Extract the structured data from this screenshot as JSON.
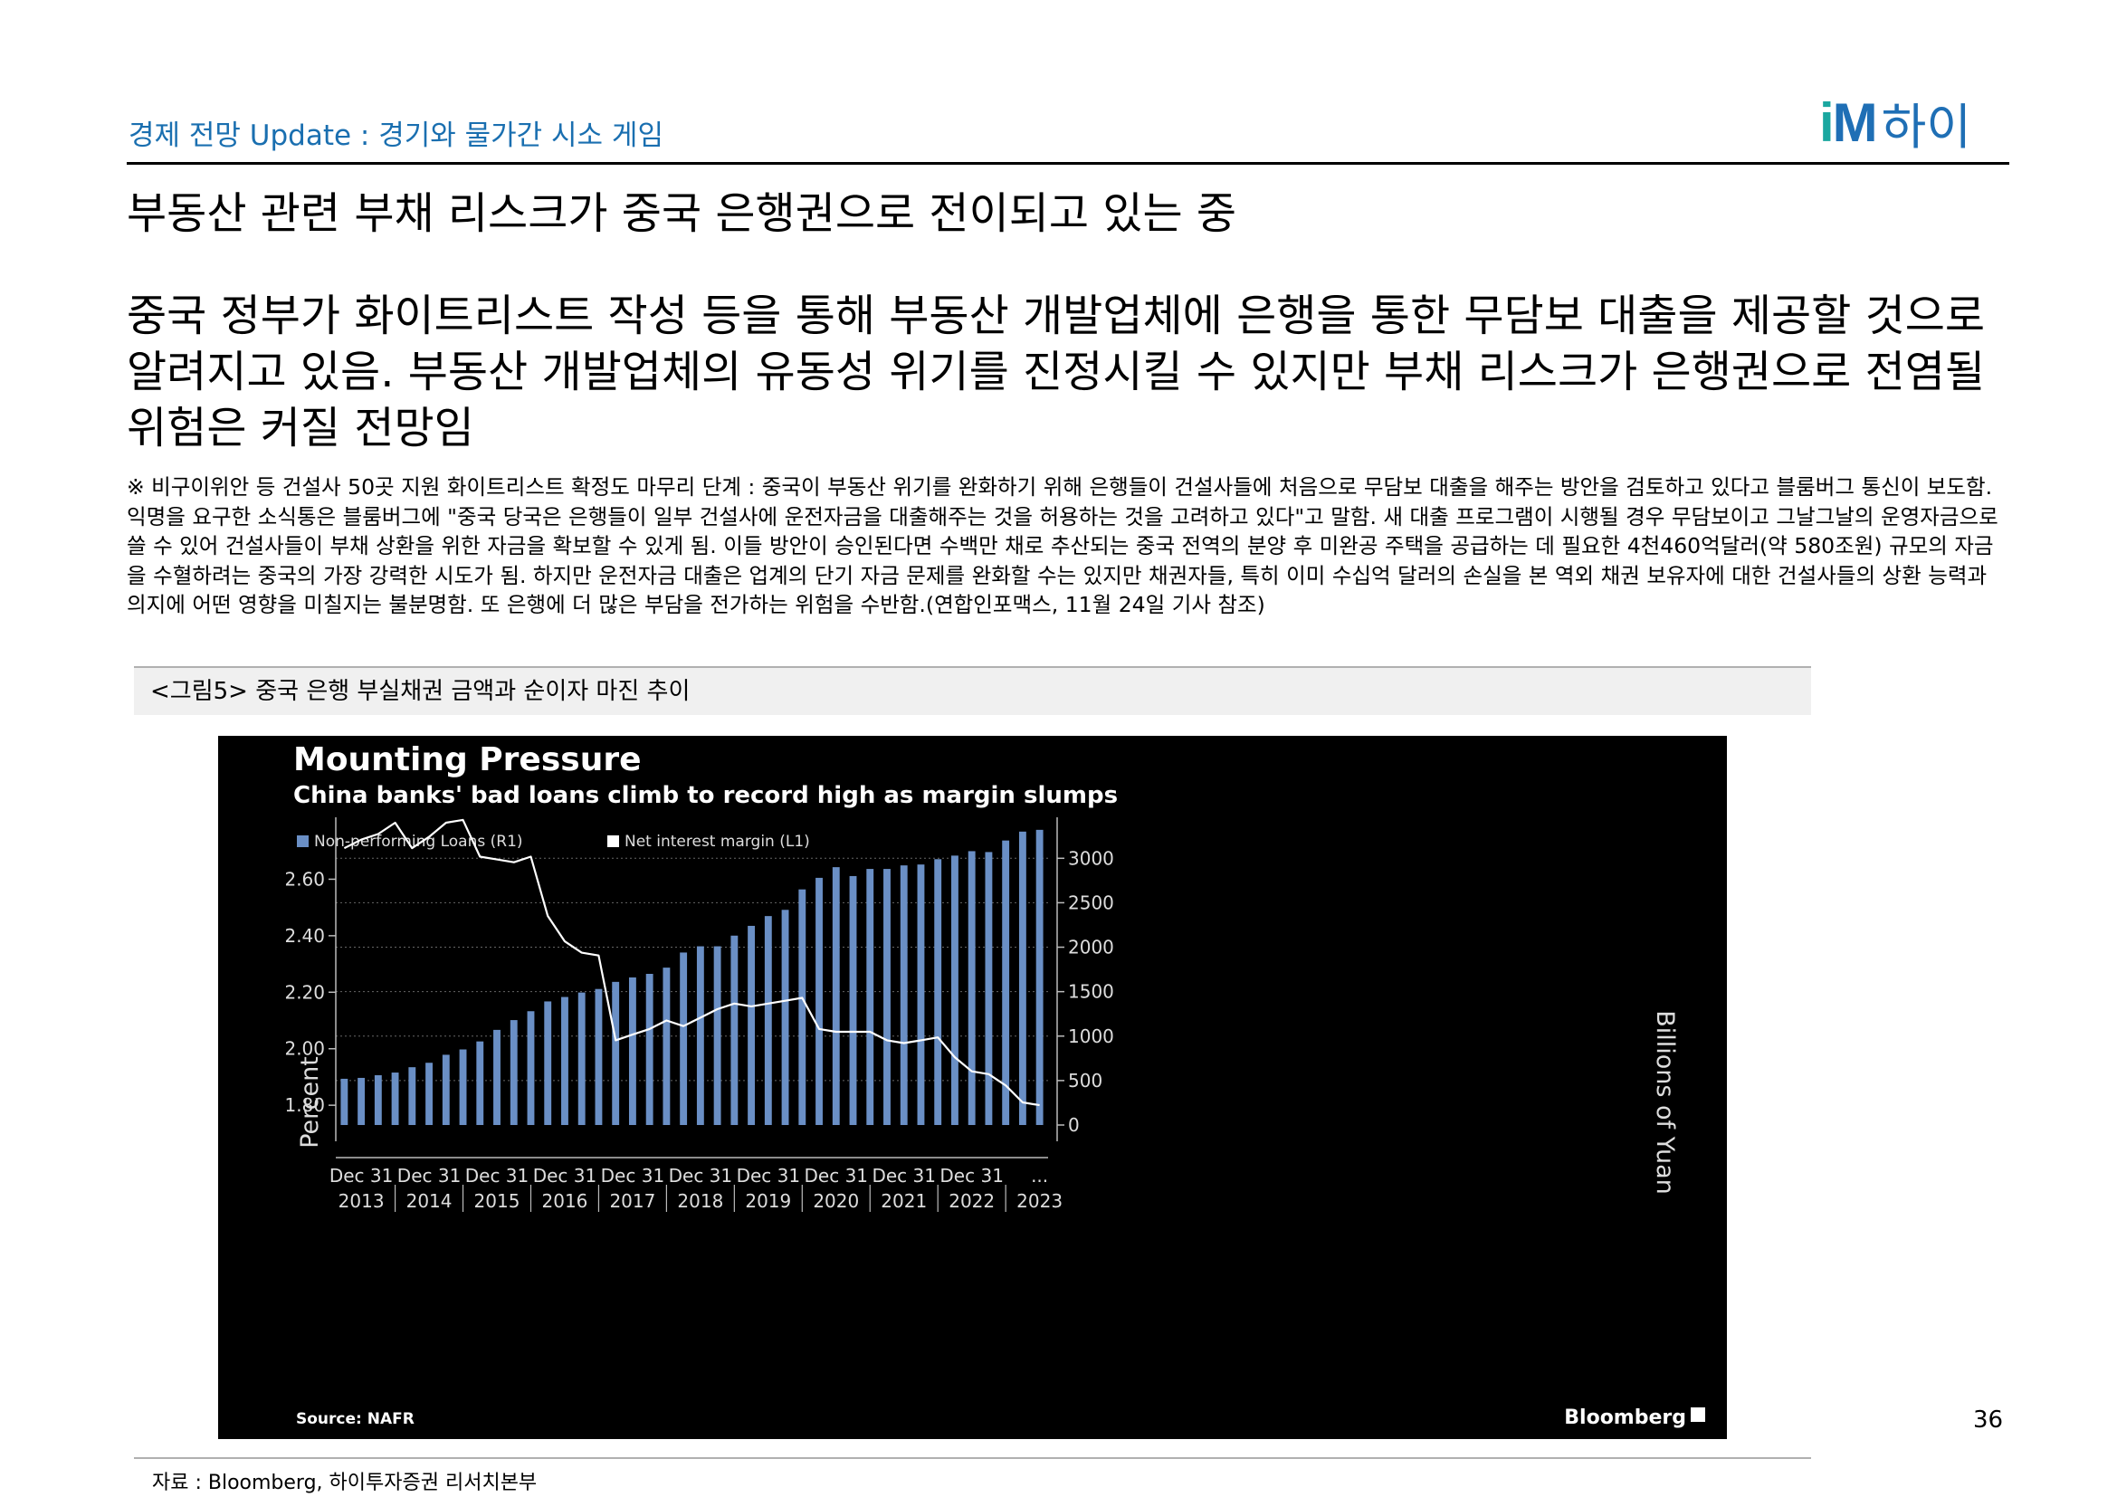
{
  "header": {
    "subtitle": "경제 전망 Update : 경기와 물가간 시소 게임",
    "logo_im_i": "i",
    "logo_im_m": "M",
    "logo_hai": "하이",
    "brand_color": "#1f6fb5",
    "accent_color": "#1aa7a0"
  },
  "headline": "부동산 관련 부채 리스크가 중국 은행권으로 전이되고 있는 중",
  "main_text": "중국 정부가 화이트리스트 작성 등을 통해 부동산 개발업체에 은행을 통한 무담보 대출을 제공할 것으로 알려지고 있음. 부동산 개발업체의 유동성 위기를 진정시킬 수 있지만 부채 리스크가 은행권으로 전염될 위험은 커질 전망임",
  "note": "※ 비구이위안 등 건설사 50곳 지원 화이트리스트 확정도 마무리 단계 : 중국이 부동산 위기를 완화하기 위해 은행들이 건설사들에 처음으로 무담보 대출을 해주는 방안을 검토하고 있다고 블룸버그 통신이 보도함. 익명을 요구한 소식통은 블룸버그에 \"중국 당국은 은행들이 일부 건설사에 운전자금을 대출해주는 것을 허용하는 것을 고려하고 있다\"고 말함. 새 대출 프로그램이 시행될 경우 무담보이고 그날그날의 운영자금으로 쓸 수 있어 건설사들이 부채 상환을 위한 자금을 확보할 수 있게 됨. 이들 방안이 승인된다면 수백만 채로 추산되는 중국 전역의 분양 후 미완공 주택을 공급하는 데 필요한 4천460억달러(약 580조원) 규모의 자금을 수혈하려는 중국의 가장 강력한 시도가 됨. 하지만 운전자금 대출은 업계의 단기 자금 문제를 완화할 수는 있지만 채권자들, 특히 이미 수십억 달러의 손실을 본 역외 채권 보유자에 대한 건설사들의 상환 능력과 의지에 어떤 영향을 미칠지는 불분명함. 또 은행에 더 많은 부담을 전가하는 위험을 수반함.(연합인포맥스, 11월 24일 기사 참조)",
  "figure": {
    "caption": "<그림5> 중국 은행 부실채권 금액과 순이자 마진 추이",
    "source": "자료 : Bloomberg, 하이투자증권 리서치본부"
  },
  "page_number": "36",
  "chart_data": {
    "type": "bar+line",
    "title": "Mounting Pressure",
    "subtitle": "China banks' bad loans climb to record high as margin slumps",
    "legend": [
      "Non-performing Loans (R1)",
      "Net interest margin (L1)"
    ],
    "ylabel_left": "Percent",
    "ylabel_right": "Billions of Yuan",
    "left_ticks": [
      "1.80",
      "2.00",
      "2.20",
      "2.40",
      "2.60"
    ],
    "right_ticks": [
      "0",
      "500",
      "1000",
      "1500",
      "2000",
      "2500",
      "3000"
    ],
    "ylim_left": [
      1.73,
      2.8
    ],
    "ylim_right": [
      0,
      3400
    ],
    "x_tick_top": [
      "Dec 31",
      "Dec 31",
      "Dec 31",
      "Dec 31",
      "Dec 31",
      "Dec 31",
      "Dec 31",
      "Dec 31",
      "Dec 31",
      "Dec 31",
      "..."
    ],
    "x_tick_bottom": [
      "2013",
      "2014",
      "2015",
      "2016",
      "2017",
      "2018",
      "2019",
      "2020",
      "2021",
      "2022",
      "2023"
    ],
    "source_text": "Source: NAFR",
    "brand_text": "Bloomberg",
    "npl_color": "#6a8fc5",
    "nim_color": "#ffffff",
    "series": [
      {
        "name": "Non-performing Loans (R1)",
        "axis": "right",
        "values": [
          520,
          530,
          560,
          590,
          650,
          700,
          790,
          850,
          940,
          1070,
          1180,
          1280,
          1390,
          1440,
          1490,
          1530,
          1610,
          1660,
          1700,
          1770,
          1940,
          2010,
          2010,
          2130,
          2240,
          2350,
          2420,
          2650,
          2780,
          2900,
          2800,
          2880,
          2880,
          2920,
          2930,
          2990,
          3030,
          3080,
          3070,
          3200,
          3300,
          3320
        ]
      },
      {
        "name": "Net interest margin (L1)",
        "axis": "left",
        "values": [
          2.71,
          2.74,
          2.76,
          2.8,
          2.71,
          2.75,
          2.8,
          2.81,
          2.68,
          2.67,
          2.66,
          2.68,
          2.47,
          2.38,
          2.34,
          2.33,
          2.03,
          2.05,
          2.07,
          2.1,
          2.08,
          2.11,
          2.14,
          2.16,
          2.15,
          2.16,
          2.17,
          2.18,
          2.07,
          2.06,
          2.06,
          2.06,
          2.03,
          2.02,
          2.03,
          2.04,
          1.97,
          1.92,
          1.91,
          1.87,
          1.81,
          1.8
        ]
      }
    ]
  }
}
